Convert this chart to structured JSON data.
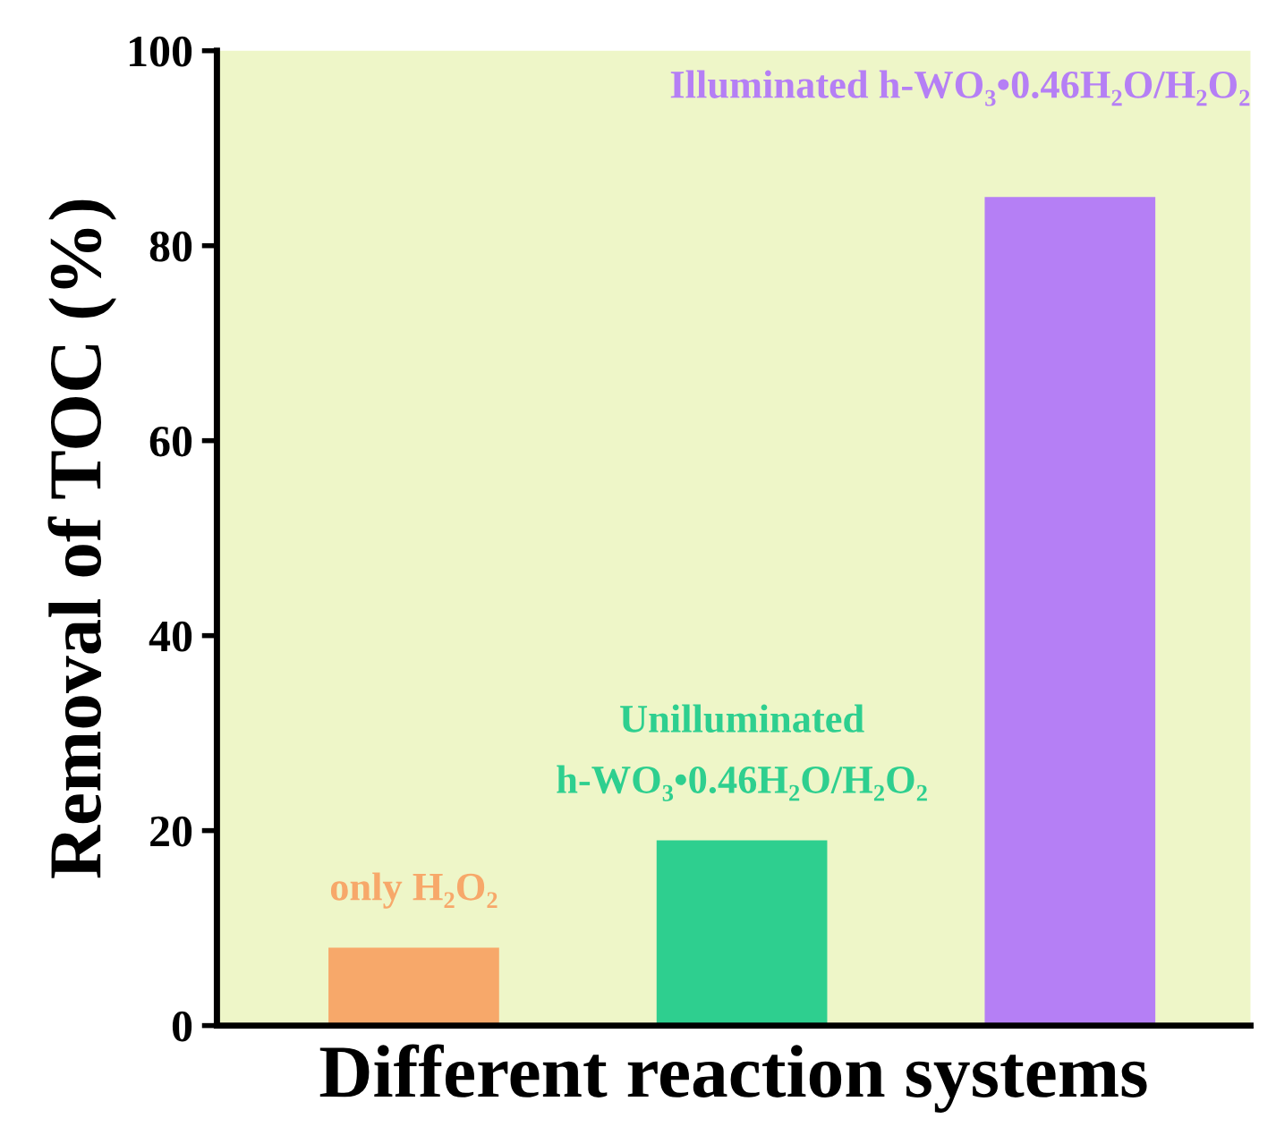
{
  "chart_data": {
    "type": "bar",
    "xlabel": "Different reaction systems",
    "ylabel": "Removal of TOC (%)",
    "categories": [
      null,
      null,
      null
    ],
    "values": [
      8,
      19,
      85
    ],
    "colors": [
      "#f7a86a",
      "#2ecf8f",
      "#b57ff5"
    ],
    "ylim": [
      0,
      100
    ],
    "yticks": [
      0,
      20,
      40,
      60,
      80,
      100
    ],
    "tick_labels": "y",
    "grid": false,
    "annotations": [
      "only H₂O₂",
      "Unilluminated\nh-WO₃•0.46H₂O/H₂O₂",
      "Illuminated h-WO₃•0.46H₂O/H₂O₂"
    ]
  }
}
